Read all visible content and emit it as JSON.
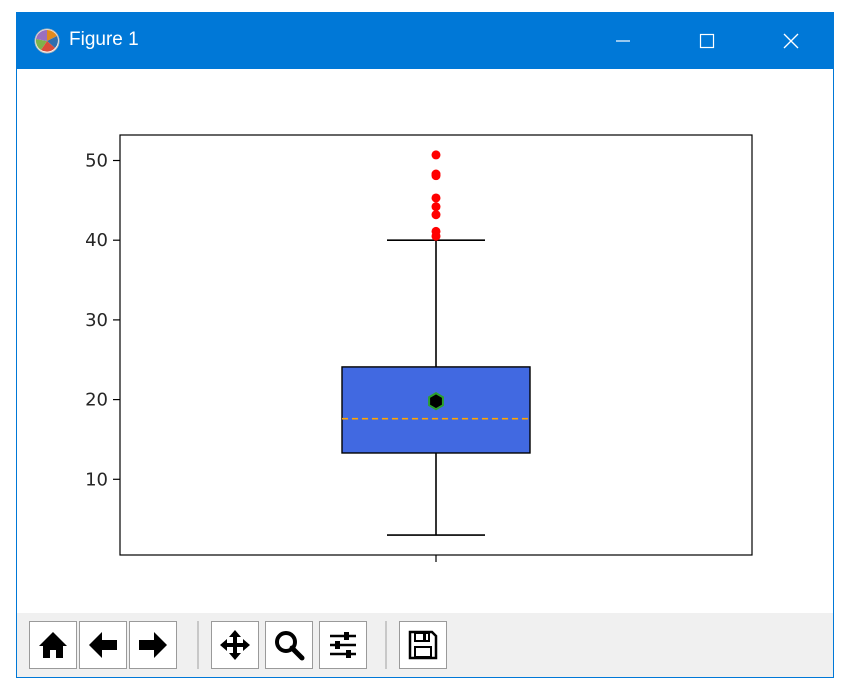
{
  "window": {
    "title": "Figure 1",
    "icons": [
      "matplotlib-logo-icon",
      "minimize-icon",
      "maximize-icon",
      "close-icon"
    ]
  },
  "toolbar": {
    "buttons": [
      "home-icon",
      "back-arrow-icon",
      "forward-arrow-icon",
      "pan-icon",
      "zoom-icon",
      "configure-subplots-icon",
      "save-icon"
    ]
  },
  "chart_data": {
    "type": "box",
    "title": "",
    "xlabel": "",
    "ylabel": "",
    "ylim": [
      0.5,
      53.2
    ],
    "yticks": [
      10,
      20,
      30,
      40,
      50
    ],
    "grid": false,
    "series": [
      {
        "whisker_low": 3,
        "q1": 13.3,
        "median": 17.6,
        "q3": 24.1,
        "whisker_high": 40,
        "mean": 19.8,
        "outliers": [
          40.5,
          41.1,
          43.2,
          44.2,
          45.3,
          48.1,
          48.3,
          50.7
        ]
      }
    ],
    "colors": {
      "box_fill": "#4169e1",
      "median_line": "#ffa500",
      "mean_marker_fill": "#000000",
      "mean_marker_edge": "#2ca02c",
      "outlier": "#ff0000",
      "edges": "#000000"
    }
  }
}
